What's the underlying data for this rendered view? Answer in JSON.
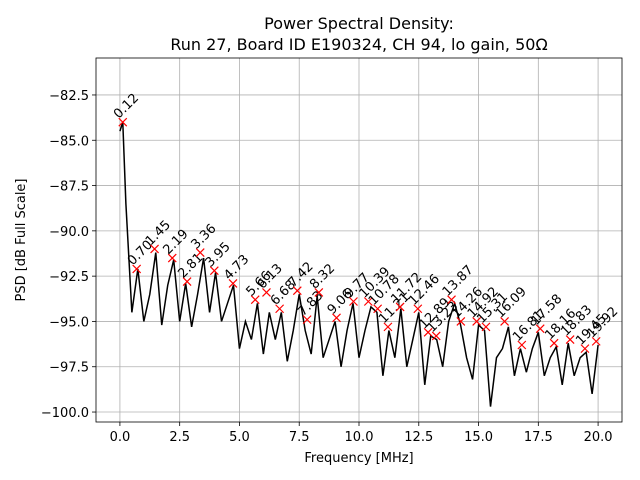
{
  "chart_data": {
    "type": "line",
    "title": "Power Spectral Density:",
    "subtitle": "Run 27, Board ID E190324, CH 94, lo gain, 50Ω",
    "x_label": "Frequency [MHz]",
    "y_label": "PSD [dB Full Scale]",
    "xlim": [
      -1,
      21
    ],
    "ylim": [
      -100.55,
      -80.46
    ],
    "xticks": [
      {
        "value": 0,
        "label": "0.0"
      },
      {
        "value": 2.5,
        "label": "2.5"
      },
      {
        "value": 5,
        "label": "5.0"
      },
      {
        "value": 7.5,
        "label": "7.5"
      },
      {
        "value": 10,
        "label": "10.0"
      },
      {
        "value": 12.5,
        "label": "12.5"
      },
      {
        "value": 15,
        "label": "15.0"
      },
      {
        "value": 17.5,
        "label": "17.5"
      },
      {
        "value": 20,
        "label": "20.0"
      }
    ],
    "yticks": [
      {
        "value": -100,
        "label": "−100.0"
      },
      {
        "value": -97.5,
        "label": "−97.5"
      },
      {
        "value": -95,
        "label": "−95.0"
      },
      {
        "value": -92.5,
        "label": "−92.5"
      },
      {
        "value": -90,
        "label": "−90.0"
      },
      {
        "value": -87.5,
        "label": "−87.5"
      },
      {
        "value": -85,
        "label": "−85.0"
      },
      {
        "value": -82.5,
        "label": "−82.5"
      }
    ],
    "grid": true,
    "series": [
      {
        "color": "#000000",
        "x": [
          0,
          0.12,
          0.25,
          0.5,
          0.75,
          1,
          1.25,
          1.5,
          1.75,
          2,
          2.25,
          2.5,
          2.75,
          3,
          3.25,
          3.5,
          3.75,
          4,
          4.25,
          4.5,
          4.75,
          5,
          5.25,
          5.5,
          5.75,
          6,
          6.25,
          6.5,
          6.75,
          7,
          7.25,
          7.5,
          7.75,
          8,
          8.25,
          8.5,
          8.75,
          9,
          9.25,
          9.5,
          9.75,
          10,
          10.25,
          10.5,
          10.75,
          11,
          11.25,
          11.5,
          11.75,
          12,
          12.25,
          12.5,
          12.75,
          13,
          13.25,
          13.5,
          13.75,
          14,
          14.25,
          14.5,
          14.75,
          15,
          15.25,
          15.5,
          15.75,
          16,
          16.25,
          16.5,
          16.75,
          17,
          17.25,
          17.5,
          17.75,
          18,
          18.25,
          18.5,
          18.75,
          19,
          19.25,
          19.5,
          19.75,
          20
        ],
        "values": [
          -84.5,
          -84.0,
          -88.5,
          -94.5,
          -92.1,
          -95.0,
          -93.5,
          -91.2,
          -95.2,
          -93.0,
          -91.6,
          -95.0,
          -92.9,
          -95.3,
          -93.5,
          -91.5,
          -94.5,
          -92.3,
          -95.0,
          -94.0,
          -93.0,
          -96.5,
          -95.0,
          -96.0,
          -94.0,
          -96.8,
          -94.5,
          -96.0,
          -94.5,
          -97.2,
          -95.5,
          -93.5,
          -95.5,
          -96.8,
          -93.6,
          -97.0,
          -96.0,
          -95.0,
          -97.5,
          -95.5,
          -94.0,
          -97.0,
          -95.5,
          -94.2,
          -94.5,
          -98.0,
          -95.5,
          -97.0,
          -94.3,
          -97.5,
          -96.0,
          -94.5,
          -98.5,
          -95.8,
          -96.0,
          -97.5,
          -95.0,
          -94.0,
          -95.2,
          -97.0,
          -98.2,
          -95.2,
          -95.5,
          -99.7,
          -97.0,
          -96.5,
          -95.3,
          -98.0,
          -96.5,
          -97.8,
          -96.5,
          -95.6,
          -98.0,
          -97.0,
          -96.4,
          -98.5,
          -96.2,
          -98.0,
          -97.0,
          -96.7,
          -99.0,
          -96.3
        ]
      }
    ],
    "peaks": {
      "color": "#ff0000",
      "x": [
        0.12,
        0.7,
        1.45,
        2.19,
        2.81,
        3.36,
        3.95,
        4.73,
        5.66,
        6.13,
        6.68,
        7.42,
        7.83,
        8.32,
        9.06,
        9.77,
        10.39,
        10.78,
        11.21,
        11.72,
        12.46,
        12.89,
        13.23,
        13.87,
        14.26,
        14.92,
        15.31,
        16.09,
        16.81,
        17.58,
        18.16,
        18.83,
        19.45,
        19.92
      ],
      "values": [
        -84.0,
        -92.1,
        -91.0,
        -91.5,
        -92.8,
        -91.2,
        -92.2,
        -92.9,
        -93.8,
        -93.4,
        -94.3,
        -93.3,
        -94.9,
        -93.4,
        -94.8,
        -93.9,
        -93.9,
        -94.3,
        -95.3,
        -94.2,
        -94.3,
        -95.6,
        -95.8,
        -93.8,
        -95.0,
        -95.0,
        -95.3,
        -95.0,
        -96.3,
        -95.4,
        -96.2,
        -96.0,
        -96.5,
        -96.1
      ],
      "labels": [
        "0.12",
        "0.70",
        "1.45",
        "2.19",
        "2.81",
        "3.36",
        "3.95",
        "4.73",
        "5.66",
        "6.13",
        "6.68",
        "7.42",
        "7.83",
        "8.32",
        "9.06",
        "9.77",
        "10.39",
        "10.78",
        "11.21",
        "11.72",
        "12.46",
        "12.89",
        "13.23",
        "13.87",
        "14.26",
        "14.92",
        "15.31",
        "16.09",
        "16.81",
        "17.58",
        "18.16",
        "18.83",
        "19.45",
        "19.92"
      ]
    }
  }
}
